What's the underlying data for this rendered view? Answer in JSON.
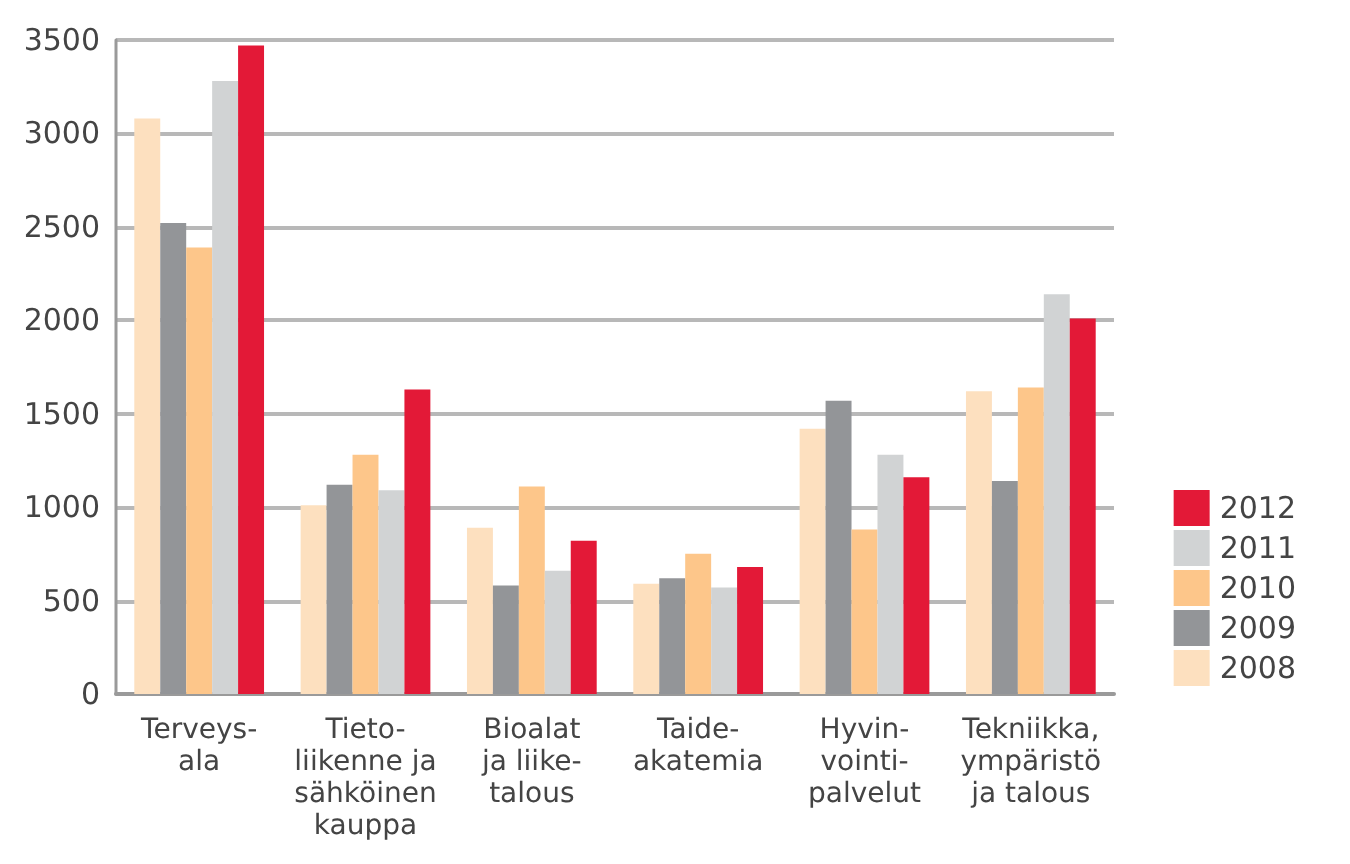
{
  "chart_data": {
    "type": "bar",
    "categories": [
      "Terveys-\nala",
      "Tieto-\nliikenne ja\nsähköinen\nkauppa",
      "Bioalat\nja liike-\ntalous",
      "Taide-\nakatemia",
      "Hyvin-\nvointi-\npalvelut",
      "Tekniikka,\nympäristö\nja talous"
    ],
    "series": [
      {
        "name": "2008",
        "color": "#fde0bf",
        "values": [
          3080,
          1010,
          890,
          590,
          1420,
          1620
        ]
      },
      {
        "name": "2009",
        "color": "#939598",
        "values": [
          2520,
          1120,
          580,
          620,
          1570,
          1140
        ]
      },
      {
        "name": "2010",
        "color": "#fdc68a",
        "values": [
          2390,
          1280,
          1110,
          750,
          880,
          1640
        ]
      },
      {
        "name": "2011",
        "color": "#d1d3d4",
        "values": [
          3280,
          1090,
          660,
          570,
          1280,
          2140
        ]
      },
      {
        "name": "2012",
        "color": "#e31937",
        "values": [
          3470,
          1630,
          820,
          680,
          1160,
          2010
        ]
      }
    ],
    "ylim": [
      0,
      3500
    ],
    "yticks": [
      0,
      500,
      1000,
      1500,
      2000,
      2500,
      3000,
      3500
    ],
    "grid": "y",
    "legend": "right"
  }
}
